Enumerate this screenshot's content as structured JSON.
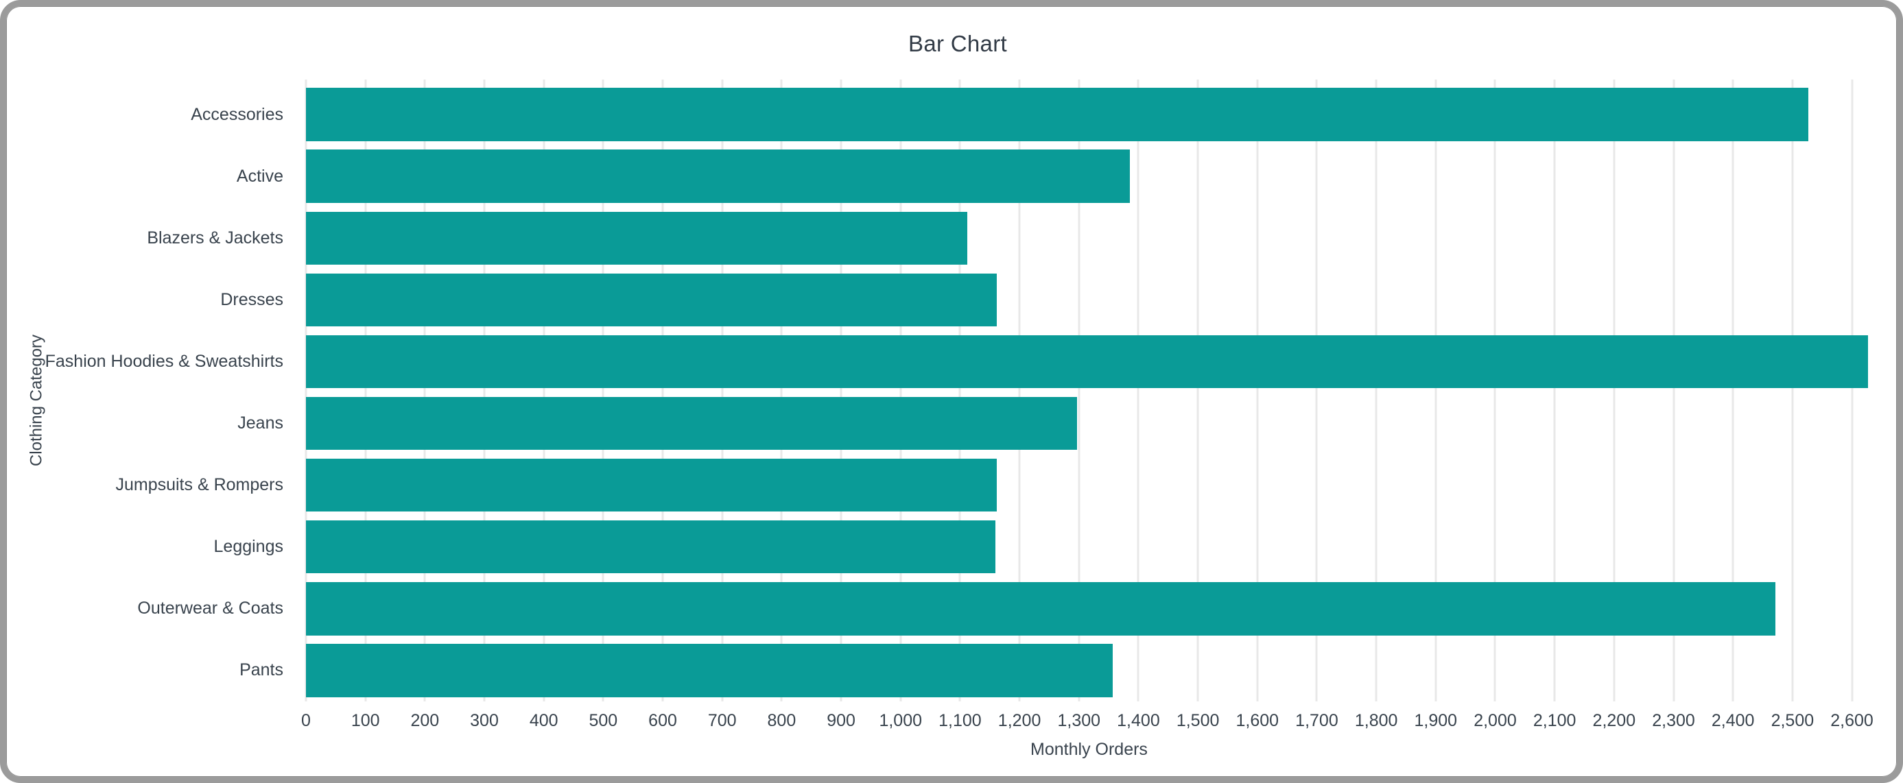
{
  "window": {
    "border_color": "#9b9b9b",
    "background_color": "#ffffff"
  },
  "chart_data": {
    "type": "bar",
    "orientation": "horizontal",
    "title": "Bar Chart",
    "xlabel": "Monthly Orders",
    "ylabel": "Clothing Category",
    "categories": [
      "Accessories",
      "Active",
      "Blazers & Jackets",
      "Dresses",
      "Fashion Hoodies & Sweatshirts",
      "Jeans",
      "Jumpsuits & Rompers",
      "Leggings",
      "Outerwear & Coats",
      "Pants"
    ],
    "values": [
      2527,
      1386,
      1112,
      1162,
      2627,
      1297,
      1162,
      1159,
      2471,
      1357
    ],
    "xlim": [
      0,
      2634
    ],
    "xticks": [
      0,
      100,
      200,
      300,
      400,
      500,
      600,
      700,
      800,
      900,
      1000,
      1100,
      1200,
      1300,
      1400,
      1500,
      1600,
      1700,
      1800,
      1900,
      2000,
      2100,
      2200,
      2300,
      2400,
      2500,
      2600
    ],
    "grid": true,
    "legend": "none",
    "bar_color": "#0a9b97",
    "grid_color": "#e8e8e8",
    "text_color": "#39434d",
    "title_color": "#323b46"
  }
}
